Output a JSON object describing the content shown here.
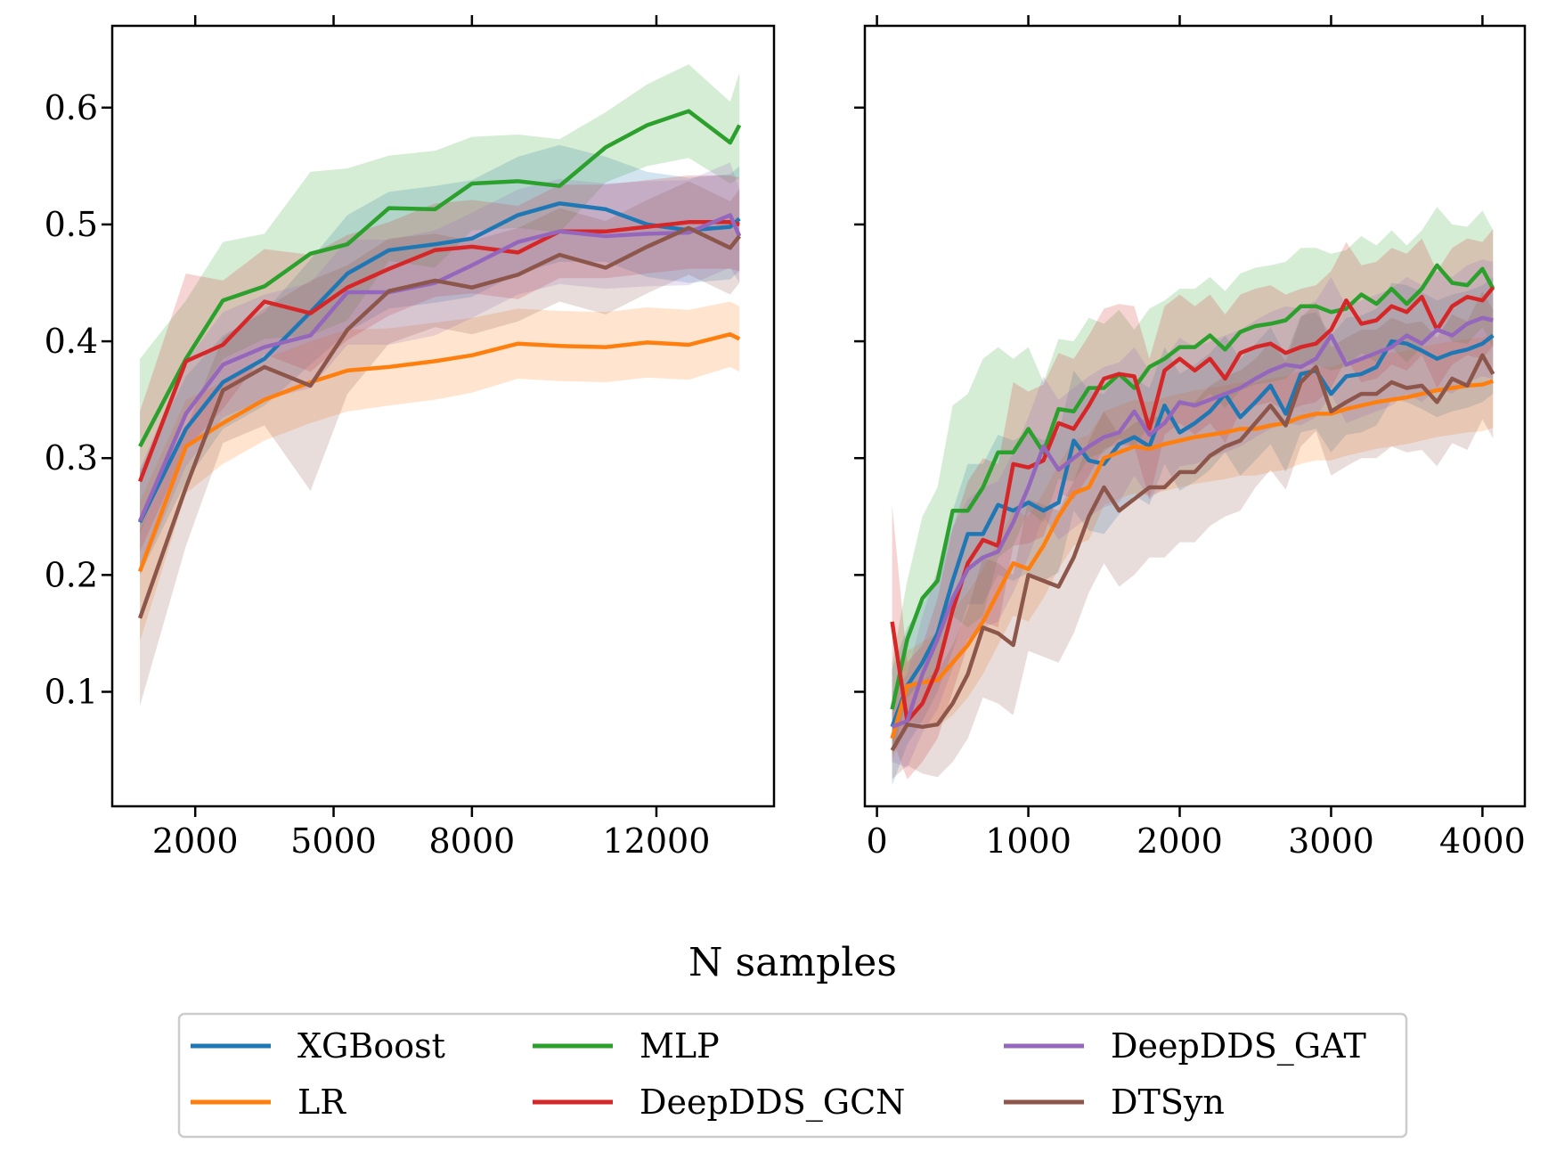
{
  "figure": {
    "xlabel": "N samples"
  },
  "chart_data": [
    {
      "type": "line",
      "panel": "left",
      "xlim": [
        200,
        14550
      ],
      "ylim": [
        0.002,
        0.67
      ],
      "xticks": [
        {
          "value": 2000,
          "label": "2000"
        },
        {
          "value": 5000,
          "label": "5000"
        },
        {
          "value": 8000,
          "label": "8000"
        },
        {
          "value": 12000,
          "label": "12000"
        }
      ],
      "top_ticks": [
        2000,
        5000,
        8000,
        12000
      ],
      "yticks": [
        {
          "value": 0.1,
          "label": "0.1"
        },
        {
          "value": 0.2,
          "label": "0.2"
        },
        {
          "value": 0.3,
          "label": "0.3"
        },
        {
          "value": 0.4,
          "label": "0.4"
        },
        {
          "value": 0.5,
          "label": "0.5"
        },
        {
          "value": 0.6,
          "label": "0.6"
        }
      ],
      "x": [
        800,
        1800,
        2600,
        3500,
        4500,
        5300,
        6200,
        7200,
        8000,
        9000,
        9900,
        10900,
        11800,
        12700,
        13600,
        13800
      ],
      "series": [
        {
          "name": "XGBoost",
          "color": "#1f77b4",
          "values": [
            0.245,
            0.325,
            0.365,
            0.385,
            0.425,
            0.458,
            0.478,
            0.483,
            0.488,
            0.508,
            0.518,
            0.513,
            0.5,
            0.495,
            0.498,
            0.505
          ],
          "spread": [
            0.045,
            0.045,
            0.04,
            0.04,
            0.045,
            0.05,
            0.05,
            0.05,
            0.05,
            0.05,
            0.05,
            0.045,
            0.045,
            0.045,
            0.045,
            0.045
          ]
        },
        {
          "name": "LR",
          "color": "#ff7f0e",
          "values": [
            0.203,
            0.31,
            0.33,
            0.35,
            0.365,
            0.375,
            0.378,
            0.383,
            0.388,
            0.398,
            0.396,
            0.395,
            0.399,
            0.397,
            0.406,
            0.402
          ],
          "spread": [
            0.06,
            0.04,
            0.035,
            0.035,
            0.035,
            0.035,
            0.033,
            0.033,
            0.032,
            0.03,
            0.03,
            0.03,
            0.03,
            0.03,
            0.028,
            0.028
          ]
        },
        {
          "name": "MLP",
          "color": "#2ca02c",
          "values": [
            0.31,
            0.385,
            0.435,
            0.447,
            0.475,
            0.483,
            0.514,
            0.513,
            0.535,
            0.537,
            0.533,
            0.566,
            0.585,
            0.597,
            0.57,
            0.585
          ],
          "spread": [
            0.075,
            0.05,
            0.05,
            0.045,
            0.07,
            0.065,
            0.045,
            0.05,
            0.04,
            0.04,
            0.04,
            0.03,
            0.035,
            0.04,
            0.035,
            0.045
          ]
        },
        {
          "name": "DeepDDS_GCN",
          "color": "#d62728",
          "values": [
            0.28,
            0.383,
            0.397,
            0.434,
            0.424,
            0.446,
            0.462,
            0.478,
            0.481,
            0.476,
            0.494,
            0.494,
            0.498,
            0.502,
            0.502,
            0.5
          ],
          "spread": [
            0.06,
            0.075,
            0.055,
            0.045,
            0.05,
            0.045,
            0.04,
            0.04,
            0.04,
            0.04,
            0.04,
            0.04,
            0.04,
            0.04,
            0.04,
            0.04
          ]
        },
        {
          "name": "DeepDDS_GAT",
          "color": "#9467bd",
          "values": [
            0.246,
            0.338,
            0.38,
            0.395,
            0.405,
            0.442,
            0.442,
            0.45,
            0.465,
            0.485,
            0.494,
            0.49,
            0.492,
            0.493,
            0.508,
            0.49
          ],
          "spread": [
            0.045,
            0.045,
            0.045,
            0.045,
            0.045,
            0.045,
            0.045,
            0.045,
            0.045,
            0.045,
            0.045,
            0.045,
            0.045,
            0.045,
            0.045,
            0.04
          ]
        },
        {
          "name": "DTSyn",
          "color": "#8c564b",
          "values": [
            0.163,
            0.275,
            0.358,
            0.378,
            0.362,
            0.41,
            0.443,
            0.452,
            0.446,
            0.457,
            0.474,
            0.463,
            0.481,
            0.497,
            0.48,
            0.49
          ],
          "spread": [
            0.075,
            0.05,
            0.045,
            0.05,
            0.09,
            0.055,
            0.045,
            0.04,
            0.04,
            0.04,
            0.04,
            0.04,
            0.04,
            0.04,
            0.04,
            0.04
          ]
        }
      ]
    },
    {
      "type": "line",
      "panel": "right",
      "xlim": [
        -80,
        4280
      ],
      "ylim": [
        0.002,
        0.67
      ],
      "xticks": [
        {
          "value": 0,
          "label": "0"
        },
        {
          "value": 1000,
          "label": "1000"
        },
        {
          "value": 2000,
          "label": "2000"
        },
        {
          "value": 3000,
          "label": "3000"
        },
        {
          "value": 4000,
          "label": "4000"
        }
      ],
      "top_ticks": [
        0,
        1000,
        2000,
        3000,
        4000
      ],
      "yticks": [
        {
          "value": 0.1,
          "label": ""
        },
        {
          "value": 0.2,
          "label": ""
        },
        {
          "value": 0.3,
          "label": ""
        },
        {
          "value": 0.4,
          "label": ""
        },
        {
          "value": 0.5,
          "label": ""
        },
        {
          "value": 0.6,
          "label": ""
        }
      ],
      "x": [
        100,
        200,
        300,
        400,
        500,
        600,
        700,
        800,
        900,
        1000,
        1100,
        1200,
        1300,
        1400,
        1500,
        1600,
        1700,
        1800,
        1900,
        2000,
        2100,
        2200,
        2300,
        2400,
        2500,
        2600,
        2700,
        2800,
        2900,
        3000,
        3100,
        3200,
        3300,
        3400,
        3500,
        3600,
        3700,
        3800,
        3900,
        4000,
        4070
      ],
      "series": [
        {
          "name": "XGBoost",
          "color": "#1f77b4",
          "values": [
            0.07,
            0.105,
            0.125,
            0.15,
            0.195,
            0.235,
            0.235,
            0.26,
            0.255,
            0.262,
            0.255,
            0.262,
            0.315,
            0.298,
            0.295,
            0.312,
            0.318,
            0.31,
            0.345,
            0.322,
            0.33,
            0.34,
            0.355,
            0.335,
            0.348,
            0.362,
            0.338,
            0.372,
            0.375,
            0.355,
            0.37,
            0.372,
            0.378,
            0.4,
            0.398,
            0.392,
            0.385,
            0.39,
            0.393,
            0.398,
            0.405
          ],
          "spread": [
            0.05,
            0.05,
            0.05,
            0.05,
            0.06,
            0.06,
            0.06,
            0.06,
            0.06,
            0.06,
            0.06,
            0.06,
            0.06,
            0.06,
            0.06,
            0.06,
            0.05,
            0.05,
            0.05,
            0.05,
            0.05,
            0.05,
            0.05,
            0.05,
            0.05,
            0.05,
            0.05,
            0.05,
            0.05,
            0.05,
            0.05,
            0.05,
            0.05,
            0.05,
            0.05,
            0.05,
            0.05,
            0.05,
            0.05,
            0.05,
            0.05
          ]
        },
        {
          "name": "LR",
          "color": "#ff7f0e",
          "values": [
            0.06,
            0.105,
            0.108,
            0.11,
            0.125,
            0.14,
            0.16,
            0.185,
            0.21,
            0.205,
            0.225,
            0.25,
            0.27,
            0.275,
            0.3,
            0.305,
            0.31,
            0.308,
            0.312,
            0.315,
            0.318,
            0.32,
            0.322,
            0.325,
            0.325,
            0.328,
            0.33,
            0.335,
            0.338,
            0.338,
            0.342,
            0.345,
            0.348,
            0.35,
            0.352,
            0.355,
            0.358,
            0.36,
            0.362,
            0.363,
            0.366
          ],
          "spread": [
            0.02,
            0.03,
            0.035,
            0.04,
            0.045,
            0.045,
            0.045,
            0.045,
            0.045,
            0.045,
            0.045,
            0.045,
            0.045,
            0.045,
            0.04,
            0.04,
            0.04,
            0.04,
            0.04,
            0.04,
            0.04,
            0.04,
            0.04,
            0.04,
            0.04,
            0.04,
            0.04,
            0.04,
            0.04,
            0.04,
            0.04,
            0.04,
            0.04,
            0.04,
            0.04,
            0.04,
            0.04,
            0.04,
            0.04,
            0.04,
            0.04
          ]
        },
        {
          "name": "MLP",
          "color": "#2ca02c",
          "values": [
            0.085,
            0.145,
            0.18,
            0.195,
            0.255,
            0.255,
            0.275,
            0.305,
            0.305,
            0.325,
            0.305,
            0.342,
            0.34,
            0.36,
            0.36,
            0.372,
            0.36,
            0.378,
            0.385,
            0.395,
            0.395,
            0.405,
            0.393,
            0.408,
            0.413,
            0.415,
            0.418,
            0.43,
            0.43,
            0.425,
            0.428,
            0.44,
            0.432,
            0.445,
            0.432,
            0.445,
            0.465,
            0.45,
            0.448,
            0.462,
            0.445
          ],
          "spread": [
            0.04,
            0.05,
            0.07,
            0.08,
            0.09,
            0.1,
            0.11,
            0.09,
            0.08,
            0.07,
            0.06,
            0.06,
            0.06,
            0.06,
            0.055,
            0.055,
            0.05,
            0.05,
            0.05,
            0.05,
            0.05,
            0.05,
            0.05,
            0.05,
            0.05,
            0.05,
            0.05,
            0.05,
            0.05,
            0.05,
            0.05,
            0.05,
            0.05,
            0.05,
            0.05,
            0.05,
            0.05,
            0.05,
            0.05,
            0.05,
            0.05
          ]
        },
        {
          "name": "DeepDDS_GCN",
          "color": "#d62728",
          "values": [
            0.16,
            0.075,
            0.09,
            0.12,
            0.17,
            0.21,
            0.23,
            0.225,
            0.295,
            0.292,
            0.298,
            0.33,
            0.325,
            0.345,
            0.368,
            0.372,
            0.37,
            0.325,
            0.375,
            0.385,
            0.375,
            0.385,
            0.368,
            0.39,
            0.395,
            0.398,
            0.39,
            0.395,
            0.398,
            0.41,
            0.435,
            0.415,
            0.418,
            0.43,
            0.425,
            0.438,
            0.41,
            0.43,
            0.438,
            0.435,
            0.446
          ],
          "spread": [
            0.1,
            0.05,
            0.05,
            0.06,
            0.07,
            0.07,
            0.07,
            0.07,
            0.07,
            0.065,
            0.065,
            0.06,
            0.06,
            0.06,
            0.06,
            0.06,
            0.06,
            0.06,
            0.055,
            0.055,
            0.055,
            0.055,
            0.055,
            0.05,
            0.05,
            0.05,
            0.05,
            0.05,
            0.05,
            0.05,
            0.05,
            0.05,
            0.05,
            0.05,
            0.05,
            0.05,
            0.05,
            0.05,
            0.05,
            0.05,
            0.05
          ]
        },
        {
          "name": "DeepDDS_GAT",
          "color": "#9467bd",
          "values": [
            0.07,
            0.075,
            0.115,
            0.145,
            0.18,
            0.205,
            0.215,
            0.22,
            0.245,
            0.275,
            0.31,
            0.29,
            0.3,
            0.31,
            0.318,
            0.322,
            0.34,
            0.32,
            0.33,
            0.348,
            0.345,
            0.35,
            0.355,
            0.36,
            0.368,
            0.375,
            0.38,
            0.378,
            0.385,
            0.405,
            0.38,
            0.385,
            0.39,
            0.395,
            0.405,
            0.398,
            0.41,
            0.405,
            0.415,
            0.42,
            0.418
          ],
          "spread": [
            0.03,
            0.04,
            0.05,
            0.06,
            0.06,
            0.06,
            0.06,
            0.06,
            0.06,
            0.06,
            0.06,
            0.06,
            0.06,
            0.06,
            0.06,
            0.06,
            0.055,
            0.055,
            0.055,
            0.055,
            0.05,
            0.05,
            0.05,
            0.05,
            0.05,
            0.05,
            0.05,
            0.05,
            0.05,
            0.05,
            0.05,
            0.05,
            0.05,
            0.05,
            0.05,
            0.05,
            0.05,
            0.05,
            0.05,
            0.05,
            0.05
          ]
        },
        {
          "name": "DTSyn",
          "color": "#8c564b",
          "values": [
            0.05,
            0.072,
            0.07,
            0.072,
            0.09,
            0.115,
            0.155,
            0.15,
            0.14,
            0.2,
            0.195,
            0.19,
            0.215,
            0.25,
            0.275,
            0.255,
            0.265,
            0.275,
            0.275,
            0.288,
            0.288,
            0.302,
            0.31,
            0.315,
            0.33,
            0.345,
            0.328,
            0.365,
            0.378,
            0.34,
            0.348,
            0.355,
            0.355,
            0.365,
            0.36,
            0.362,
            0.348,
            0.368,
            0.362,
            0.388,
            0.372
          ],
          "spread": [
            0.025,
            0.035,
            0.04,
            0.045,
            0.05,
            0.055,
            0.06,
            0.06,
            0.06,
            0.065,
            0.065,
            0.065,
            0.065,
            0.065,
            0.065,
            0.065,
            0.065,
            0.06,
            0.06,
            0.06,
            0.06,
            0.06,
            0.06,
            0.06,
            0.055,
            0.055,
            0.055,
            0.055,
            0.055,
            0.055,
            0.055,
            0.055,
            0.055,
            0.055,
            0.055,
            0.055,
            0.055,
            0.055,
            0.055,
            0.055,
            0.055
          ]
        }
      ]
    }
  ],
  "legend": {
    "placement": "bottom-center",
    "entries": [
      {
        "label": "XGBoost",
        "color": "#1f77b4"
      },
      {
        "label": "LR",
        "color": "#ff7f0e"
      },
      {
        "label": "MLP",
        "color": "#2ca02c"
      },
      {
        "label": "DeepDDS_GCN",
        "color": "#d62728"
      },
      {
        "label": "DeepDDS_GAT",
        "color": "#9467bd"
      },
      {
        "label": "DTSyn",
        "color": "#8c564b"
      }
    ]
  }
}
